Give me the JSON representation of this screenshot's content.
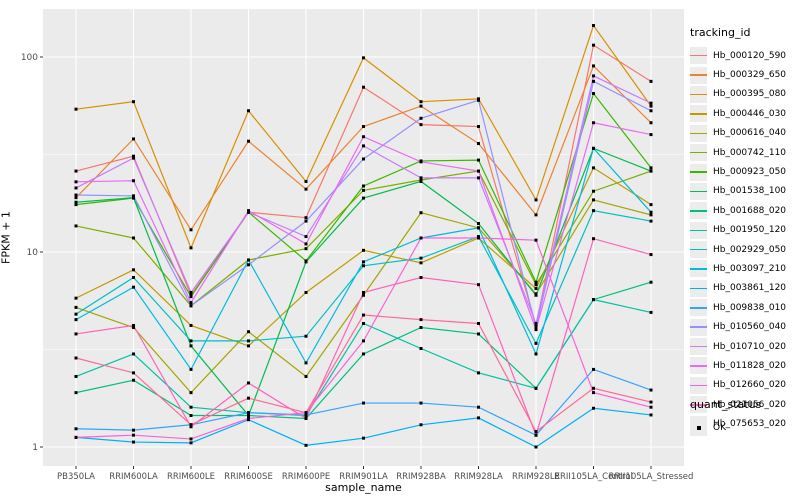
{
  "chart_data": {
    "type": "line",
    "title": "",
    "xlabel": "sample_name",
    "ylabel": "FPKM + 1",
    "yscale": "log10",
    "ylim": [
      1,
      150
    ],
    "yticks": [
      1,
      10,
      100
    ],
    "ytick_labels": [
      "1",
      "10",
      "100"
    ],
    "yminor": [
      3.1623,
      31.623
    ],
    "grid": "white-on-gray",
    "panel_background": "#EBEBEB",
    "gridline_color": "#FFFFFF",
    "tick_label_color": "#4D4D4D",
    "point_marker": "black-square",
    "legend_position": "right",
    "legend_title": "tracking_id",
    "legend2": {
      "title": "quant_status",
      "items": [
        {
          "label": "OK",
          "marker": "black-square"
        }
      ]
    },
    "categories": [
      "PB350LA",
      "RRIM600LA",
      "RRIM600LE",
      "RRIM600SE",
      "RRIM600PE",
      "RRIM901LA",
      "RRIM928BA",
      "RRIM928LA",
      "RRIM928LE",
      "RRII105LA_Control",
      "RRII105LA_Stressed"
    ],
    "series": [
      {
        "name": "Hb_000120_590",
        "color": "#F8766D",
        "values": [
          26,
          31,
          6.0,
          16,
          15,
          70,
          45,
          44,
          4.2,
          115,
          75
        ]
      },
      {
        "name": "Hb_000329_650",
        "color": "#EA8331",
        "values": [
          19,
          38,
          13,
          37,
          21,
          44,
          56,
          36,
          15.5,
          90,
          46
        ]
      },
      {
        "name": "Hb_000395_080",
        "color": "#D89000",
        "values": [
          54,
          59,
          10.5,
          53,
          23,
          99,
          59,
          61,
          18.5,
          145,
          56
        ]
      },
      {
        "name": "Hb_000446_030",
        "color": "#C09B00",
        "values": [
          5.8,
          8.1,
          4.2,
          3.3,
          6.2,
          10.2,
          8.8,
          11.8,
          6.5,
          27,
          17.5
        ]
      },
      {
        "name": "Hb_000616_040",
        "color": "#A3A500",
        "values": [
          5.2,
          4.1,
          1.9,
          3.9,
          2.3,
          6.0,
          15.9,
          13.3,
          6.1,
          18.5,
          15.5
        ]
      },
      {
        "name": "Hb_000742_110",
        "color": "#7CAE00",
        "values": [
          13.6,
          11.8,
          5.3,
          9.1,
          10.4,
          20.7,
          23.4,
          26,
          6.8,
          20.5,
          26
        ]
      },
      {
        "name": "Hb_000923_050",
        "color": "#39B600",
        "values": [
          17.5,
          18.9,
          5.9,
          16,
          9.0,
          21.8,
          29.3,
          29.6,
          7.0,
          65,
          27
        ]
      },
      {
        "name": "Hb_001538_100",
        "color": "#00BB4E",
        "values": [
          18,
          19,
          3.3,
          1.45,
          8.9,
          18.9,
          23,
          14,
          6.0,
          34,
          26
        ]
      },
      {
        "name": "Hb_001688_020",
        "color": "#00BF7D",
        "values": [
          1.9,
          2.2,
          1.45,
          1.45,
          1.4,
          3.0,
          4.1,
          3.8,
          2.0,
          5.7,
          7.0
        ]
      },
      {
        "name": "Hb_001950_120",
        "color": "#00C1A3",
        "values": [
          2.3,
          3.0,
          1.6,
          1.5,
          1.45,
          4.3,
          3.2,
          2.4,
          2.0,
          5.7,
          4.9
        ]
      },
      {
        "name": "Hb_002929_050",
        "color": "#00BFC4",
        "values": [
          4.8,
          7.4,
          3.5,
          3.5,
          3.7,
          8.5,
          9.3,
          12,
          3.4,
          16.3,
          14.4
        ]
      },
      {
        "name": "Hb_003097_210",
        "color": "#00BAE0",
        "values": [
          4.5,
          6.6,
          2.5,
          9.1,
          2.7,
          8.9,
          11.8,
          13.3,
          3.0,
          34,
          16
        ]
      },
      {
        "name": "Hb_003861_120",
        "color": "#00B0F6",
        "values": [
          1.12,
          1.06,
          1.05,
          1.38,
          1.02,
          1.11,
          1.3,
          1.41,
          1.0,
          1.58,
          1.46
        ]
      },
      {
        "name": "Hb_009838_010",
        "color": "#35A2FF",
        "values": [
          1.24,
          1.22,
          1.3,
          1.5,
          1.46,
          1.68,
          1.68,
          1.6,
          1.15,
          2.5,
          1.96
        ]
      },
      {
        "name": "Hb_010560_040",
        "color": "#9590FF",
        "values": [
          19.6,
          19.4,
          5.3,
          8.6,
          14.4,
          30,
          48.5,
          60,
          4.1,
          75,
          53
        ]
      },
      {
        "name": "Hb_010710_020",
        "color": "#C77CFF",
        "values": [
          21.3,
          30.3,
          6.2,
          16,
          12,
          35,
          24,
          24,
          4.3,
          80,
          58
        ]
      },
      {
        "name": "Hb_011828_020",
        "color": "#E76BF3",
        "values": [
          22.9,
          23.2,
          5.5,
          16.3,
          11,
          39,
          29,
          26,
          4.0,
          46,
          40
        ]
      },
      {
        "name": "Hb_012660_020",
        "color": "#FA62DB",
        "values": [
          1.12,
          1.15,
          1.1,
          1.4,
          1.5,
          3.5,
          11.8,
          11.8,
          11.5,
          1.9,
          1.6
        ]
      },
      {
        "name": "Hb_021056_020",
        "color": "#FF62BC",
        "values": [
          3.8,
          4.2,
          1.27,
          2.13,
          1.4,
          6.2,
          7.4,
          6.8,
          1.15,
          11.7,
          9.7
        ]
      },
      {
        "name": "Hb_075653_020",
        "color": "#FF6A98",
        "values": [
          2.86,
          2.4,
          1.3,
          1.78,
          1.5,
          4.75,
          4.5,
          4.3,
          1.2,
          2.0,
          1.7
        ]
      }
    ]
  }
}
